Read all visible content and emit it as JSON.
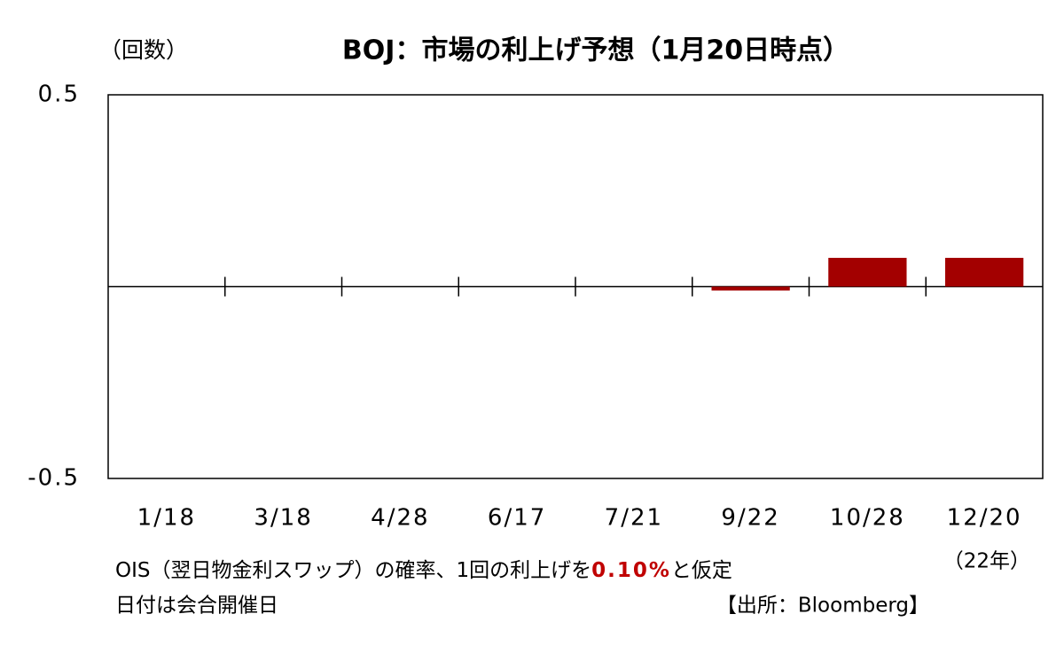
{
  "chart_data": {
    "type": "bar",
    "title": "BOJ：市場の利上げ予想（1月20日時点）",
    "y_unit": "（回数）",
    "categories": [
      "1/18",
      "3/18",
      "4/28",
      "6/17",
      "7/21",
      "9/22",
      "10/28",
      "12/20"
    ],
    "values": [
      0,
      0,
      0,
      0,
      0,
      -0.01,
      0.075,
      0.075
    ],
    "color": "#a30000",
    "ylim": [
      -0.5,
      0.5
    ],
    "yticks": [
      -0.5,
      0.5
    ],
    "year_note": "（22年）",
    "note_parts": [
      "OIS（翌日物金利スワップ）の確率、1回の利上げを",
      "0.10%",
      "と仮定"
    ],
    "note2": "日付は会合開催日",
    "source": "【出所：Bloomberg】"
  }
}
